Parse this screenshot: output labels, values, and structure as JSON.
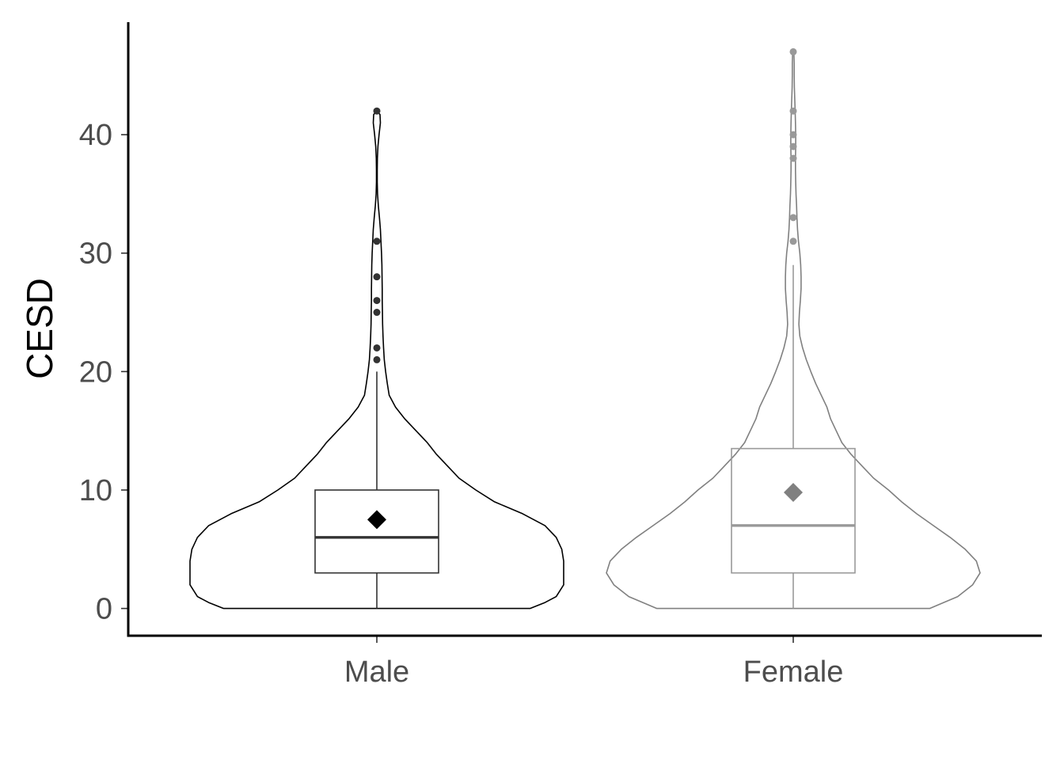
{
  "chart_data": {
    "type": "violin",
    "title": "",
    "xlabel": "",
    "ylabel": "CESD",
    "ylim": [
      -2.3,
      49.5
    ],
    "yticks": [
      0,
      10,
      20,
      30,
      40
    ],
    "categories": [
      "Male",
      "Female"
    ],
    "grid": false,
    "legend": "none",
    "groups": [
      {
        "category": "Male",
        "color": "#000000",
        "box_color": "#333333",
        "mean_color": "#000000",
        "min": 0,
        "q1": 3,
        "median": 6,
        "q3": 10,
        "mean": 7.5,
        "whisker_low": 0,
        "whisker_high": 20,
        "outliers": [
          21,
          22,
          25,
          26,
          28,
          31,
          42
        ],
        "max": 42,
        "density": [
          [
            0,
            0.82
          ],
          [
            0.5,
            0.9
          ],
          [
            1,
            0.96
          ],
          [
            2,
            1.0
          ],
          [
            3,
            1.0
          ],
          [
            4,
            1.0
          ],
          [
            5,
            0.99
          ],
          [
            6,
            0.96
          ],
          [
            7,
            0.9
          ],
          [
            8,
            0.78
          ],
          [
            9,
            0.63
          ],
          [
            10,
            0.53
          ],
          [
            11,
            0.44
          ],
          [
            12,
            0.38
          ],
          [
            13,
            0.32
          ],
          [
            14,
            0.27
          ],
          [
            15,
            0.21
          ],
          [
            16,
            0.15
          ],
          [
            17,
            0.1
          ],
          [
            18,
            0.066
          ],
          [
            19,
            0.056
          ],
          [
            20,
            0.047
          ],
          [
            21,
            0.04
          ],
          [
            22,
            0.036
          ],
          [
            23,
            0.033
          ],
          [
            24,
            0.031
          ],
          [
            25,
            0.03
          ],
          [
            26,
            0.029
          ],
          [
            27,
            0.029
          ],
          [
            28,
            0.028
          ],
          [
            29,
            0.027
          ],
          [
            30,
            0.025
          ],
          [
            31,
            0.022
          ],
          [
            32,
            0.019
          ],
          [
            33,
            0.014
          ],
          [
            34,
            0.008
          ],
          [
            35,
            0.004
          ],
          [
            36,
            0.002
          ],
          [
            37,
            0.002
          ],
          [
            38,
            0.003
          ],
          [
            39,
            0.006
          ],
          [
            40,
            0.012
          ],
          [
            41,
            0.019
          ],
          [
            41.7,
            0.017
          ],
          [
            42,
            0.0
          ]
        ]
      },
      {
        "category": "Female",
        "color": "#808080",
        "box_color": "#999999",
        "mean_color": "#808080",
        "min": 0,
        "q1": 3,
        "median": 7,
        "q3": 13.5,
        "mean": 9.8,
        "whisker_low": 0,
        "whisker_high": 29,
        "outliers": [
          31,
          33,
          38,
          39,
          40,
          42,
          47
        ],
        "max": 47,
        "density": [
          [
            0,
            0.73
          ],
          [
            1,
            0.88
          ],
          [
            2,
            0.96
          ],
          [
            3,
            1.0
          ],
          [
            4,
            0.98
          ],
          [
            5,
            0.92
          ],
          [
            6,
            0.84
          ],
          [
            7,
            0.75
          ],
          [
            8,
            0.66
          ],
          [
            9,
            0.58
          ],
          [
            10,
            0.51
          ],
          [
            11,
            0.43
          ],
          [
            12,
            0.37
          ],
          [
            13,
            0.31
          ],
          [
            14,
            0.26
          ],
          [
            15,
            0.23
          ],
          [
            16,
            0.2
          ],
          [
            17,
            0.18
          ],
          [
            18,
            0.15
          ],
          [
            19,
            0.12
          ],
          [
            20,
            0.094
          ],
          [
            21,
            0.07
          ],
          [
            22,
            0.05
          ],
          [
            23,
            0.035
          ],
          [
            24,
            0.03
          ],
          [
            25,
            0.033
          ],
          [
            26,
            0.038
          ],
          [
            27,
            0.042
          ],
          [
            28,
            0.042
          ],
          [
            29,
            0.04
          ],
          [
            30,
            0.035
          ],
          [
            31,
            0.028
          ],
          [
            32,
            0.023
          ],
          [
            33,
            0.02
          ],
          [
            34,
            0.018
          ],
          [
            35,
            0.015
          ],
          [
            36,
            0.013
          ],
          [
            37,
            0.012
          ],
          [
            38,
            0.012
          ],
          [
            39,
            0.013
          ],
          [
            40,
            0.013
          ],
          [
            41,
            0.012
          ],
          [
            42,
            0.01
          ],
          [
            43,
            0.008
          ],
          [
            44,
            0.006
          ],
          [
            45,
            0.005
          ],
          [
            46,
            0.005
          ],
          [
            46.7,
            0.004
          ],
          [
            47,
            0.0
          ]
        ]
      }
    ]
  }
}
